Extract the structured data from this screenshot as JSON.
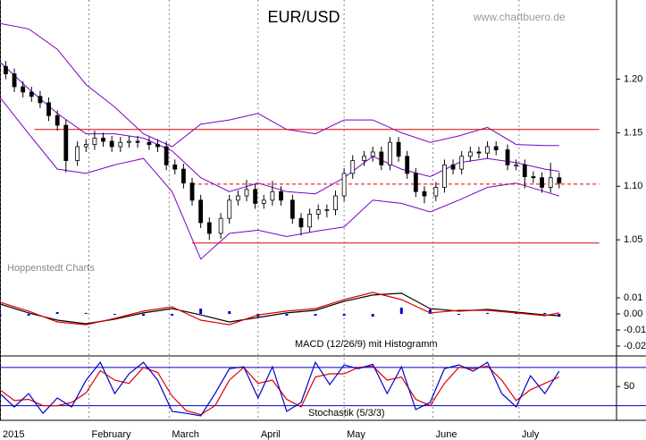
{
  "chart_data": [
    {
      "type": "candlestick",
      "title": "EUR/USD",
      "watermark": "www.chartbuero.de",
      "source": "Hoppenstedt Charts",
      "xlim": [
        1,
        216
      ],
      "xticks": [
        {
          "value": 1,
          "label": "2015"
        },
        {
          "value": 32,
          "label": "February"
        },
        {
          "value": 60,
          "label": "March"
        },
        {
          "value": 91,
          "label": "April"
        },
        {
          "value": 121,
          "label": "May"
        },
        {
          "value": 152,
          "label": "June"
        },
        {
          "value": 182,
          "label": "July"
        }
      ],
      "ylim": [
        1.005,
        1.274
      ],
      "yticks": [
        1.05,
        {
          "value": 1.1,
          "label": "1.10"
        },
        1.15,
        {
          "value": 1.2,
          "label": "1.20"
        }
      ],
      "up_color": "#ffffff",
      "down_color": "#000000",
      "x": [
        3,
        6,
        9,
        12,
        15,
        18,
        21,
        24,
        28,
        31,
        34,
        37,
        40,
        43,
        46,
        49,
        53,
        56,
        59,
        62,
        65,
        68,
        71,
        74,
        78,
        81,
        84,
        87,
        90,
        93,
        96,
        99,
        103,
        106,
        109,
        112,
        115,
        118,
        121,
        124,
        128,
        131,
        134,
        137,
        140,
        143,
        146,
        149,
        153,
        156,
        159,
        162,
        165,
        168,
        171,
        174,
        178,
        181,
        184,
        187,
        190,
        193,
        196
      ],
      "open": [
        1.212,
        1.205,
        1.193,
        1.188,
        1.184,
        1.178,
        1.166,
        1.157,
        1.124,
        1.137,
        1.139,
        1.145,
        1.142,
        1.137,
        1.141,
        1.142,
        1.141,
        1.139,
        1.137,
        1.12,
        1.116,
        1.103,
        1.087,
        1.066,
        1.056,
        1.07,
        1.087,
        1.091,
        1.097,
        1.084,
        1.087,
        1.095,
        1.087,
        1.07,
        1.062,
        1.074,
        1.078,
        1.078,
        1.091,
        1.112,
        1.124,
        1.128,
        1.132,
        1.12,
        1.141,
        1.128,
        1.112,
        1.095,
        1.091,
        1.099,
        1.12,
        1.116,
        1.128,
        1.132,
        1.131,
        1.137,
        1.134,
        1.12,
        1.12,
        1.109,
        1.108,
        1.099,
        1.108
      ],
      "high": [
        1.217,
        1.21,
        1.198,
        1.193,
        1.189,
        1.183,
        1.171,
        1.162,
        1.142,
        1.144,
        1.152,
        1.15,
        1.147,
        1.146,
        1.147,
        1.147,
        1.146,
        1.144,
        1.142,
        1.125,
        1.121,
        1.108,
        1.092,
        1.071,
        1.075,
        1.092,
        1.096,
        1.106,
        1.102,
        1.092,
        1.105,
        1.1,
        1.092,
        1.075,
        1.079,
        1.083,
        1.083,
        1.096,
        1.117,
        1.129,
        1.133,
        1.137,
        1.137,
        1.146,
        1.146,
        1.133,
        1.117,
        1.1,
        1.104,
        1.125,
        1.125,
        1.133,
        1.137,
        1.137,
        1.142,
        1.142,
        1.139,
        1.125,
        1.125,
        1.114,
        1.113,
        1.122,
        1.113
      ],
      "low": [
        1.2,
        1.188,
        1.183,
        1.179,
        1.173,
        1.161,
        1.152,
        1.113,
        1.119,
        1.132,
        1.134,
        1.137,
        1.132,
        1.132,
        1.136,
        1.136,
        1.134,
        1.132,
        1.115,
        1.111,
        1.098,
        1.082,
        1.061,
        1.05,
        1.051,
        1.065,
        1.082,
        1.086,
        1.079,
        1.079,
        1.082,
        1.082,
        1.065,
        1.054,
        1.057,
        1.069,
        1.071,
        1.073,
        1.086,
        1.107,
        1.119,
        1.123,
        1.115,
        1.115,
        1.123,
        1.107,
        1.09,
        1.084,
        1.086,
        1.094,
        1.111,
        1.111,
        1.123,
        1.126,
        1.126,
        1.129,
        1.115,
        1.115,
        1.098,
        1.103,
        1.094,
        1.094,
        1.098
      ],
      "close": [
        1.205,
        1.193,
        1.188,
        1.184,
        1.178,
        1.166,
        1.157,
        1.124,
        1.137,
        1.139,
        1.145,
        1.142,
        1.137,
        1.141,
        1.142,
        1.141,
        1.139,
        1.137,
        1.12,
        1.116,
        1.103,
        1.087,
        1.066,
        1.056,
        1.07,
        1.087,
        1.091,
        1.097,
        1.084,
        1.087,
        1.095,
        1.087,
        1.07,
        1.062,
        1.074,
        1.078,
        1.078,
        1.091,
        1.112,
        1.124,
        1.128,
        1.132,
        1.12,
        1.141,
        1.128,
        1.112,
        1.095,
        1.091,
        1.099,
        1.12,
        1.116,
        1.128,
        1.132,
        1.131,
        1.137,
        1.134,
        1.12,
        1.12,
        1.109,
        1.108,
        1.099,
        1.108,
        1.103
      ],
      "series": [
        {
          "color": "#7a00c8",
          "x": [
            1,
            11,
            21,
            31,
            41,
            51,
            61,
            71,
            81,
            91,
            101,
            111,
            121,
            131,
            141,
            151,
            161,
            171,
            181,
            191,
            196
          ],
          "values": [
            1.252,
            1.247,
            1.228,
            1.195,
            1.174,
            1.149,
            1.137,
            1.158,
            1.162,
            1.168,
            1.153,
            1.149,
            1.162,
            1.162,
            1.15,
            1.141,
            1.147,
            1.155,
            1.139,
            1.138,
            1.138
          ]
        },
        {
          "color": "#7a00c8",
          "x": [
            1,
            11,
            21,
            31,
            41,
            51,
            61,
            71,
            81,
            91,
            101,
            111,
            121,
            131,
            141,
            151,
            161,
            171,
            181,
            191,
            196
          ],
          "values": [
            1.216,
            1.191,
            1.168,
            1.149,
            1.149,
            1.145,
            1.133,
            1.108,
            1.095,
            1.103,
            1.095,
            1.093,
            1.108,
            1.128,
            1.116,
            1.109,
            1.122,
            1.126,
            1.122,
            1.116,
            1.114
          ]
        },
        {
          "color": "#7a00c8",
          "x": [
            1,
            11,
            21,
            31,
            41,
            51,
            61,
            71,
            81,
            91,
            101,
            111,
            121,
            131,
            141,
            151,
            161,
            171,
            181,
            191,
            196
          ],
          "values": [
            1.183,
            1.149,
            1.116,
            1.112,
            1.12,
            1.126,
            1.095,
            1.032,
            1.056,
            1.059,
            1.053,
            1.058,
            1.062,
            1.087,
            1.084,
            1.076,
            1.087,
            1.099,
            1.103,
            1.095,
            1.091
          ]
        },
        {
          "color": "#e00000",
          "x": [
            13,
            210
          ],
          "values": [
            1.153,
            1.153
          ]
        },
        {
          "color": "#e00000",
          "dash": true,
          "x": [
            68,
            210
          ],
          "values": [
            1.102,
            1.102
          ]
        },
        {
          "color": "#e00000",
          "x": [
            68,
            210
          ],
          "values": [
            1.047,
            1.047
          ]
        }
      ]
    },
    {
      "type": "macd",
      "title": "MACD (12/26/9) mit Histogramm",
      "ylim": [
        -0.0261,
        0.0161
      ],
      "yticks": [
        0.01,
        {
          "value": 0,
          "label": "0.00"
        },
        -0.01,
        -0.02
      ],
      "x": [
        1,
        11,
        21,
        31,
        41,
        51,
        61,
        71,
        81,
        91,
        101,
        111,
        121,
        131,
        141,
        151,
        161,
        171,
        181,
        191,
        196
      ],
      "series": [
        {
          "style": "bar",
          "color": "#0000cc",
          "values": [
            -0.0011,
            -0.0011,
            0.0011,
            0.0006,
            -0.0006,
            -0.0011,
            -0.0011,
            0.0033,
            0.0017,
            -0.0017,
            -0.0011,
            -0.0011,
            -0.0011,
            -0.0017,
            0.0039,
            0.0028,
            -0.0006,
            0.0006,
            0.0006,
            0.0006,
            -0.0017
          ]
        },
        {
          "style": "line",
          "color": "#000000",
          "values": [
            0.0061,
            0.0006,
            -0.0039,
            -0.0061,
            -0.0033,
            0.0006,
            0.0033,
            -0.0006,
            -0.005,
            -0.0022,
            0.0006,
            0.0022,
            0.0078,
            0.0117,
            0.0128,
            0.0033,
            0.0017,
            0.0028,
            0.0011,
            -0.0006,
            -0.0011
          ]
        },
        {
          "style": "line",
          "color": "#e00000",
          "values": [
            0.0072,
            0.0017,
            -0.005,
            -0.0067,
            -0.0028,
            0.0017,
            0.0044,
            -0.0039,
            -0.0067,
            -0.0006,
            0.0017,
            0.0033,
            0.0089,
            0.0133,
            0.0089,
            0.0006,
            0.0022,
            0.0022,
            0.0006,
            -0.0011,
            0.0006
          ]
        }
      ]
    },
    {
      "type": "stochastic",
      "title": "Stochastik (5/3/3)",
      "ylim": [
        -3,
        98
      ],
      "yticks": [
        50
      ],
      "reference_lines": [
        80,
        20
      ],
      "reference_color": "#0000cc",
      "x": [
        1,
        6,
        11,
        16,
        21,
        26,
        31,
        36,
        41,
        46,
        51,
        56,
        61,
        66,
        71,
        76,
        81,
        86,
        91,
        96,
        101,
        106,
        111,
        116,
        121,
        126,
        131,
        136,
        141,
        146,
        151,
        156,
        161,
        166,
        171,
        176,
        181,
        186,
        191,
        196
      ],
      "series": [
        {
          "style": "line",
          "color": "#e00000",
          "values": [
            45,
            28,
            30,
            20,
            20,
            25,
            40,
            75,
            60,
            55,
            80,
            72,
            35,
            12,
            6,
            20,
            60,
            80,
            55,
            60,
            30,
            18,
            65,
            70,
            70,
            80,
            82,
            60,
            65,
            30,
            20,
            55,
            80,
            78,
            82,
            60,
            28,
            45,
            55,
            65
          ]
        },
        {
          "style": "line",
          "color": "#0000cc",
          "values": [
            39,
            18,
            39,
            8,
            32,
            18,
            60,
            88,
            39,
            70,
            88,
            60,
            11,
            8,
            4,
            39,
            78,
            81,
            32,
            81,
            11,
            25,
            88,
            53,
            84,
            78,
            85,
            39,
            81,
            14,
            25,
            78,
            84,
            74,
            88,
            39,
            18,
            67,
            39,
            74
          ]
        }
      ]
    }
  ]
}
